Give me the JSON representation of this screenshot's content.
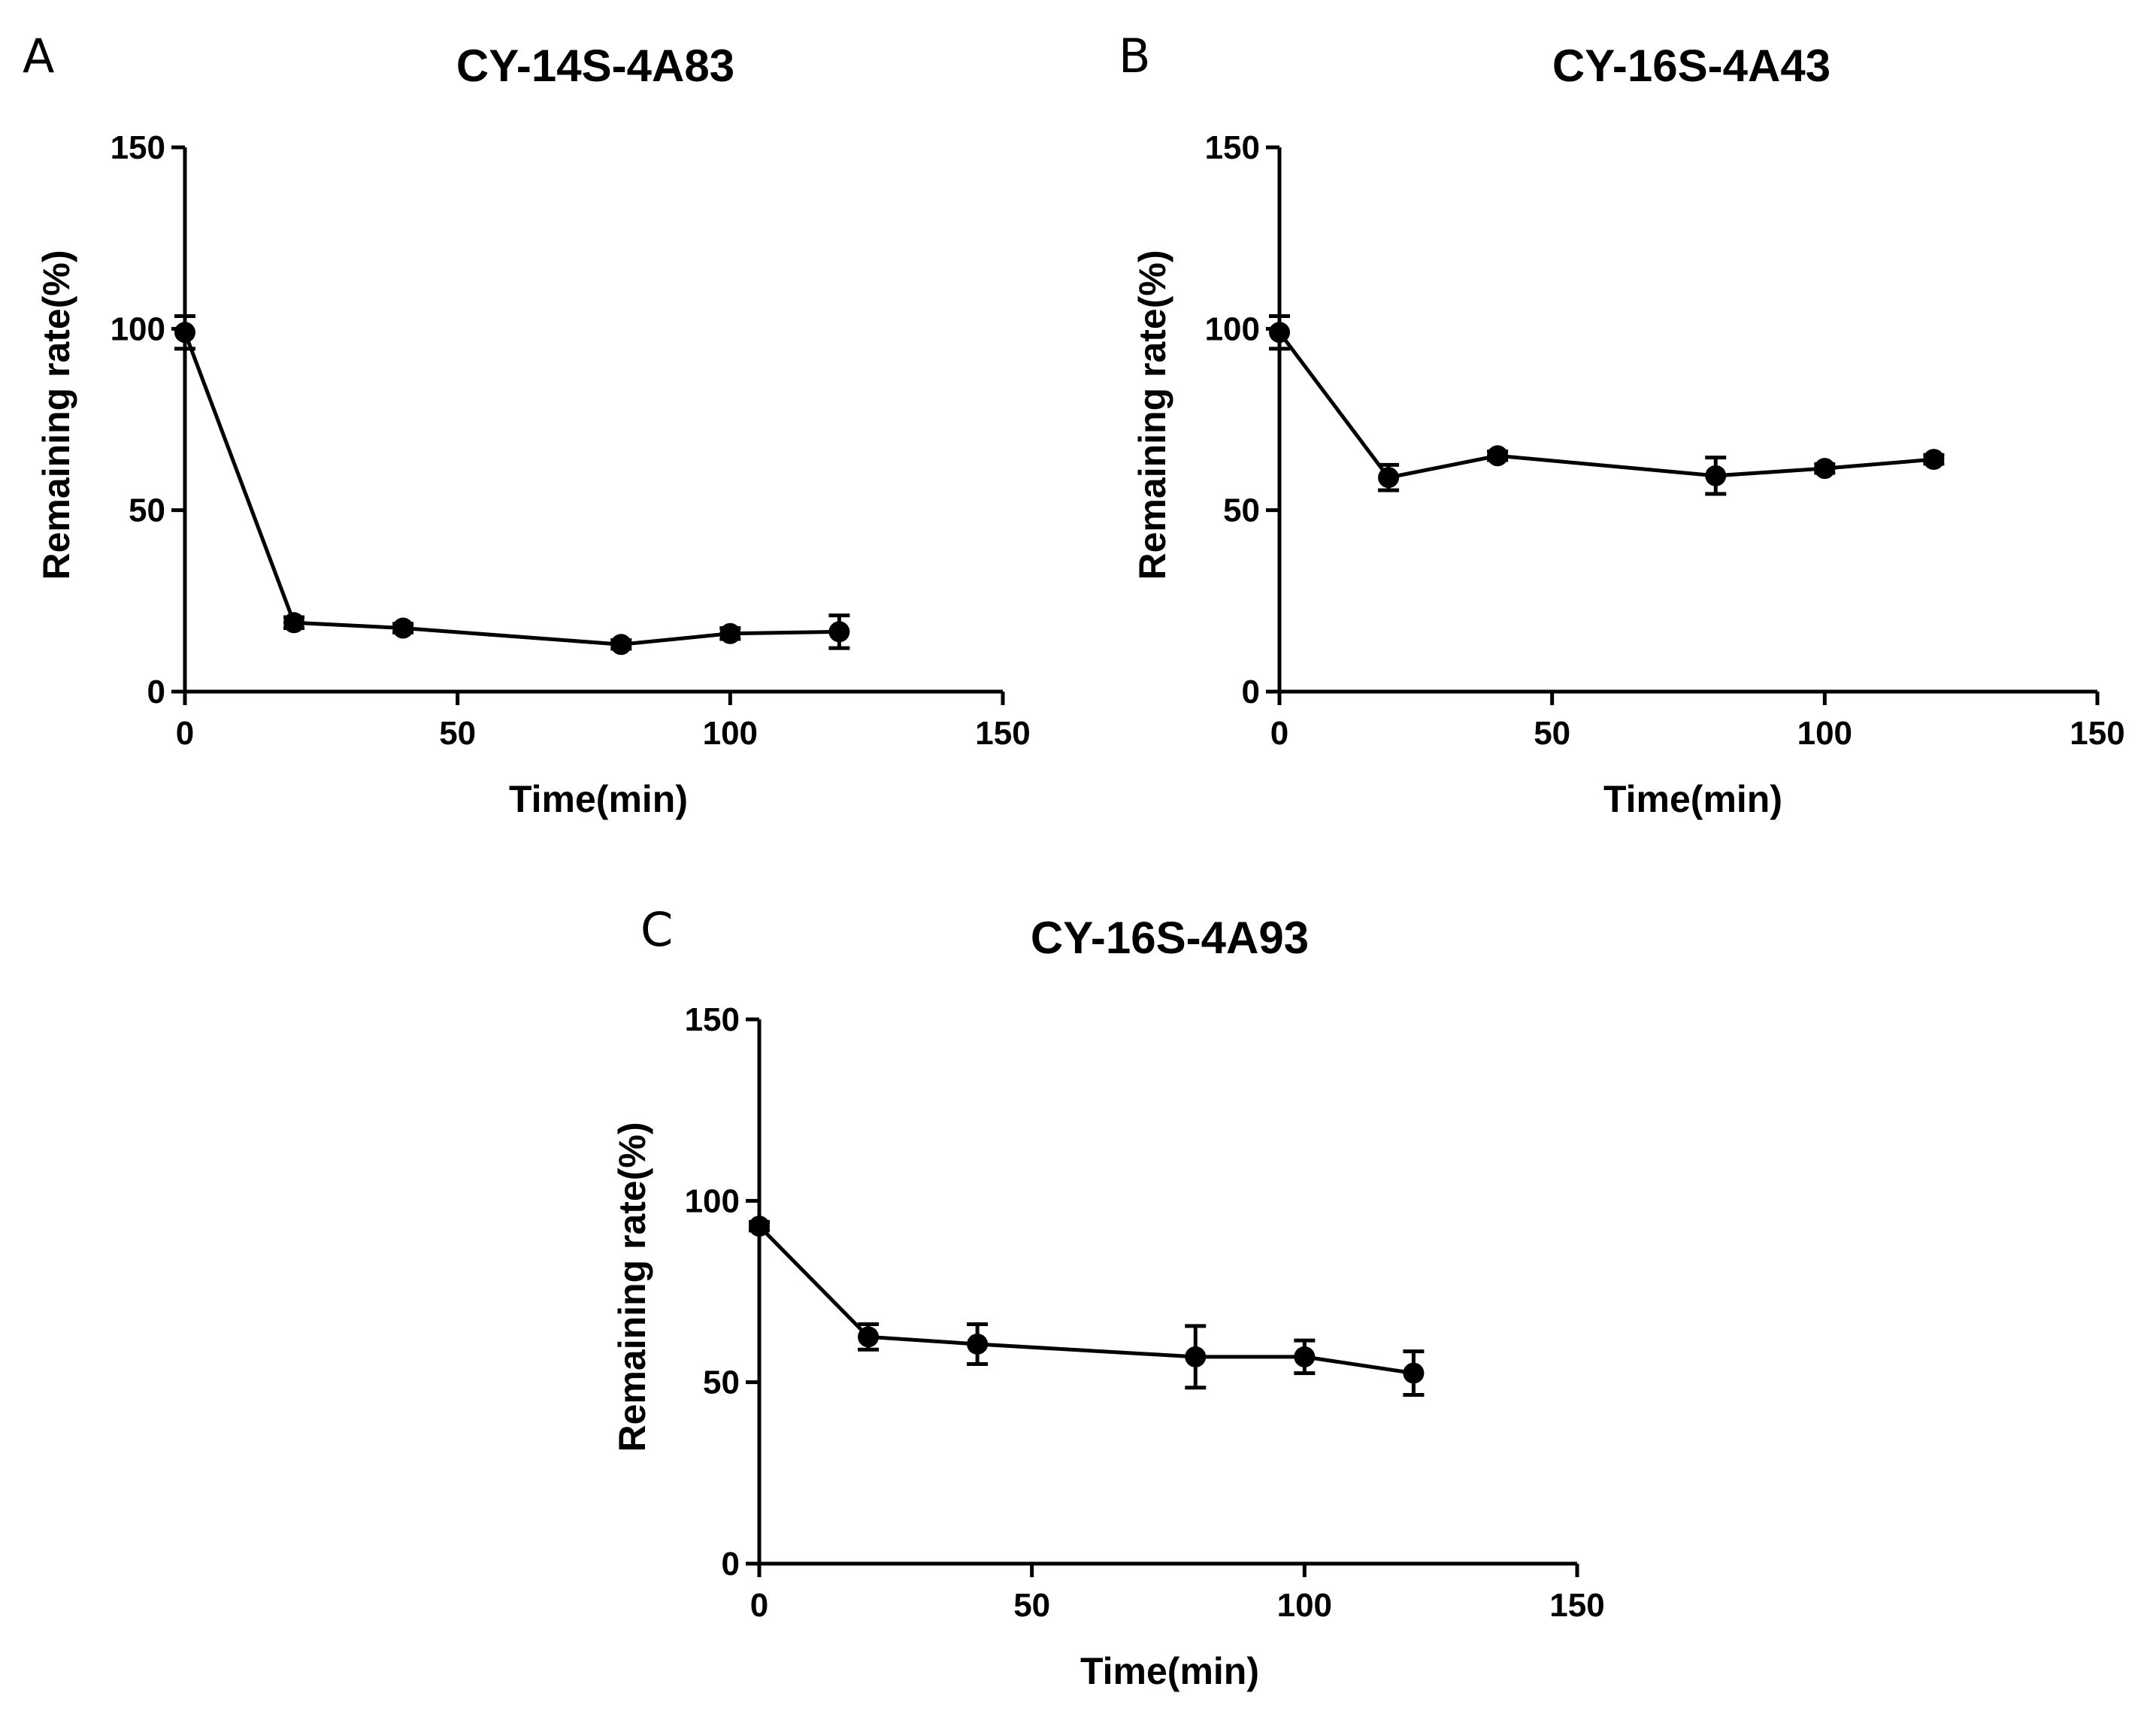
{
  "chart_data": [
    {
      "type": "line",
      "panel": "A",
      "title": "CY-14S-4A83",
      "xlabel": "Time(min)",
      "ylabel": "Remaining rate(%)",
      "xlim": [
        0,
        150
      ],
      "ylim": [
        0,
        150
      ],
      "xticks": [
        0,
        50,
        100,
        150
      ],
      "yticks": [
        0,
        50,
        100,
        150
      ],
      "grid": false,
      "series": [
        {
          "name": "CY-14S-4A83",
          "x": [
            0,
            20,
            40,
            80,
            100,
            120
          ],
          "y": [
            99,
            19,
            17.5,
            13,
            16,
            16.5
          ],
          "err": [
            4.5,
            1.5,
            1.2,
            1.2,
            1.5,
            4.5
          ]
        }
      ]
    },
    {
      "type": "line",
      "panel": "B",
      "title": "CY-16S-4A43",
      "xlabel": "Time(min)",
      "ylabel": "Remaining rate(%)",
      "xlim": [
        0,
        150
      ],
      "ylim": [
        0,
        150
      ],
      "xticks": [
        0,
        50,
        100,
        150
      ],
      "yticks": [
        0,
        50,
        100,
        150
      ],
      "grid": false,
      "series": [
        {
          "name": "CY-16S-4A43",
          "x": [
            0,
            20,
            40,
            80,
            100,
            120
          ],
          "y": [
            99,
            59,
            65,
            59.5,
            61.5,
            64
          ],
          "err": [
            4.5,
            3.5,
            1.2,
            5,
            1.2,
            1.2
          ]
        }
      ]
    },
    {
      "type": "line",
      "panel": "C",
      "title": "CY-16S-4A93",
      "xlabel": "Time(min)",
      "ylabel": "Remaining rate(%)",
      "xlim": [
        0,
        150
      ],
      "ylim": [
        0,
        150
      ],
      "xticks": [
        0,
        50,
        100,
        150
      ],
      "yticks": [
        0,
        50,
        100,
        150
      ],
      "grid": false,
      "series": [
        {
          "name": "CY-16S-4A93",
          "x": [
            0,
            20,
            40,
            80,
            100,
            120
          ],
          "y": [
            93,
            62.5,
            60.5,
            57,
            57,
            52.5
          ],
          "err": [
            1.2,
            3.5,
            5.5,
            8.5,
            4.5,
            6
          ]
        }
      ]
    }
  ]
}
